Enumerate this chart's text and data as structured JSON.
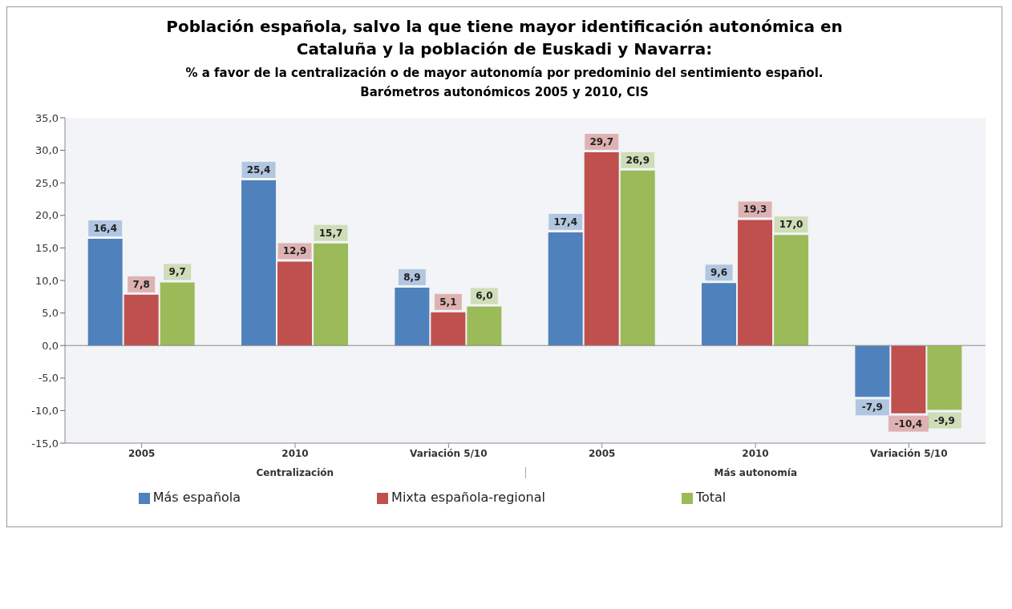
{
  "chart_data": {
    "type": "bar",
    "title": "Población española, salvo la que tiene mayor identificación autonómica en Cataluña y la población de Euskadi y Navarra:",
    "subtitle": "% a favor de la centralización o de mayor autonomía por predominio del sentimiento español. Barómetros autonómicos 2005 y 2010, CIS",
    "categories": [
      "2005",
      "2010",
      "Variación 5/10",
      "2005",
      "2010",
      "Variación 5/10"
    ],
    "series": [
      {
        "name": "Más española",
        "color": "#4f81bd",
        "values": [
          16.4,
          25.4,
          8.9,
          17.4,
          9.6,
          -7.9
        ],
        "value_labels": [
          "16,4",
          "25,4",
          "8,9",
          "17,4",
          "9,6",
          "-7,9"
        ]
      },
      {
        "name": "Mixta española-regional",
        "color": "#c0504d",
        "values": [
          7.8,
          12.9,
          5.1,
          29.7,
          19.3,
          -10.4
        ],
        "value_labels": [
          "7,8",
          "12,9",
          "5,1",
          "29,7",
          "19,3",
          "-10,4"
        ]
      },
      {
        "name": "Total",
        "color": "#9bbb59",
        "values": [
          9.7,
          15.7,
          6.0,
          26.9,
          17.0,
          -9.9
        ],
        "value_labels": [
          "9,7",
          "15,7",
          "6,0",
          "26,9",
          "17,0",
          "-9,9"
        ]
      }
    ],
    "annotations": [
      "Centralización",
      "Más autonomía"
    ],
    "ylim": [
      -15,
      35
    ],
    "yticks": [
      {
        "value": -15,
        "label": "-15,0"
      },
      {
        "value": -10,
        "label": "-10,0"
      },
      {
        "value": -5,
        "label": "-5,0"
      },
      {
        "value": 0,
        "label": "0,0"
      },
      {
        "value": 5,
        "label": "5,0"
      },
      {
        "value": 10,
        "label": "10,0"
      },
      {
        "value": 15,
        "label": "15,0"
      },
      {
        "value": 20,
        "label": "20,0"
      },
      {
        "value": 25,
        "label": "25,0"
      },
      {
        "value": 30,
        "label": "30,0"
      },
      {
        "value": 35,
        "label": "35,0"
      }
    ],
    "ref_lines": [
      {
        "axis": "y",
        "value": 0,
        "color": "#888888"
      }
    ],
    "grid": false,
    "legend": "bottom"
  }
}
